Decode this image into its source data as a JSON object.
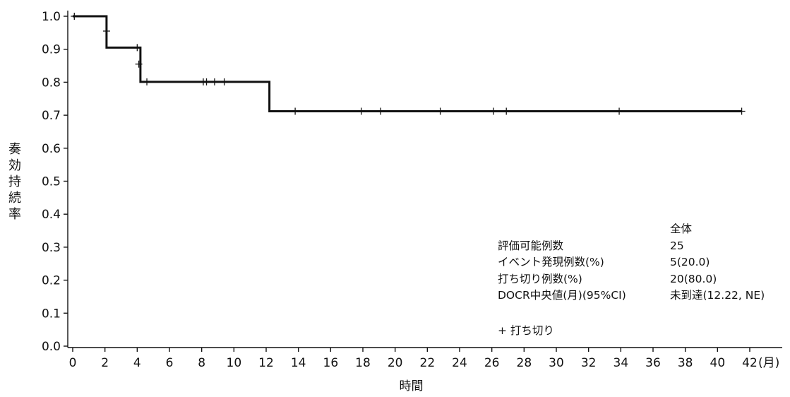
{
  "chart_data": {
    "type": "line",
    "xlabel": "時間",
    "x_unit": "(月)",
    "ylabel": "奏効持続率",
    "xlim": [
      0,
      42
    ],
    "ylim": [
      0,
      1.0
    ],
    "x_ticks": [
      "0",
      "2",
      "4",
      "6",
      "8",
      "10",
      "12",
      "14",
      "16",
      "18",
      "20",
      "22",
      "24",
      "26",
      "28",
      "30",
      "32",
      "34",
      "36",
      "38",
      "40",
      "42"
    ],
    "y_ticks": [
      "0.0",
      "0.1",
      "0.2",
      "0.3",
      "0.4",
      "0.5",
      "0.6",
      "0.7",
      "0.8",
      "0.9",
      "1.0"
    ],
    "grid": false,
    "series": [
      {
        "step_points": [
          [
            0,
            1.0
          ],
          [
            2.1,
            1.0
          ],
          [
            2.1,
            0.905
          ],
          [
            4.2,
            0.905
          ],
          [
            4.2,
            0.801
          ],
          [
            12.2,
            0.801
          ],
          [
            12.2,
            0.712
          ],
          [
            41.5,
            0.712
          ]
        ],
        "censor_marks": [
          [
            0.1,
            1.0
          ],
          [
            2.1,
            0.955
          ],
          [
            4.0,
            0.905
          ],
          [
            4.1,
            0.855
          ],
          [
            4.6,
            0.801
          ],
          [
            8.1,
            0.801
          ],
          [
            8.3,
            0.801
          ],
          [
            8.8,
            0.801
          ],
          [
            9.4,
            0.801
          ],
          [
            13.8,
            0.712
          ],
          [
            17.9,
            0.712
          ],
          [
            19.1,
            0.712
          ],
          [
            22.8,
            0.712
          ],
          [
            26.1,
            0.712
          ],
          [
            26.9,
            0.712
          ],
          [
            33.9,
            0.712
          ],
          [
            41.5,
            0.712
          ]
        ]
      }
    ],
    "legend": {
      "header": "全体",
      "rows": [
        {
          "label": "評価可能例数",
          "value": "25"
        },
        {
          "label": "イベント発現例数(%)",
          "value": "5(20.0)"
        },
        {
          "label": "打ち切り例数(%)",
          "value": "20(80.0)"
        },
        {
          "label": "DOCR中央値(月)(95%CI)",
          "value": "未到達(12.22, NE)"
        }
      ],
      "censor_note": "+ 打ち切り"
    }
  }
}
